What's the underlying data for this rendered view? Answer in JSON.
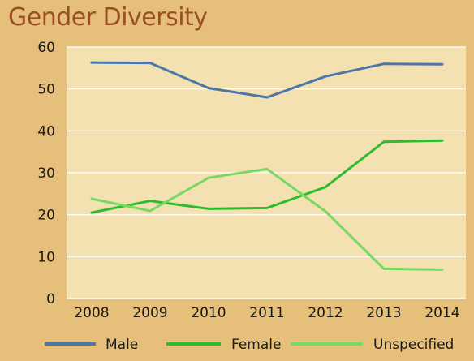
{
  "chart_data": {
    "type": "line",
    "title": "Gender Diversity",
    "categories": [
      "2008",
      "2009",
      "2010",
      "2011",
      "2012",
      "2013",
      "2014"
    ],
    "ylim": [
      0,
      60
    ],
    "yticks": [
      0,
      10,
      20,
      30,
      40,
      50,
      60
    ],
    "grid": true,
    "legend": "bottom",
    "series": [
      {
        "name": "Male",
        "color": "#4a76a8",
        "values": [
          56.3,
          56.2,
          50.2,
          48.0,
          53.0,
          56.0,
          55.9
        ]
      },
      {
        "name": "Female",
        "color": "#2ebb2e",
        "values": [
          20.5,
          23.3,
          21.4,
          21.6,
          26.6,
          37.4,
          37.7
        ]
      },
      {
        "name": "Unspecified",
        "color": "#78d862",
        "values": [
          23.8,
          20.9,
          28.8,
          30.9,
          20.8,
          7.1,
          6.9
        ]
      }
    ]
  }
}
